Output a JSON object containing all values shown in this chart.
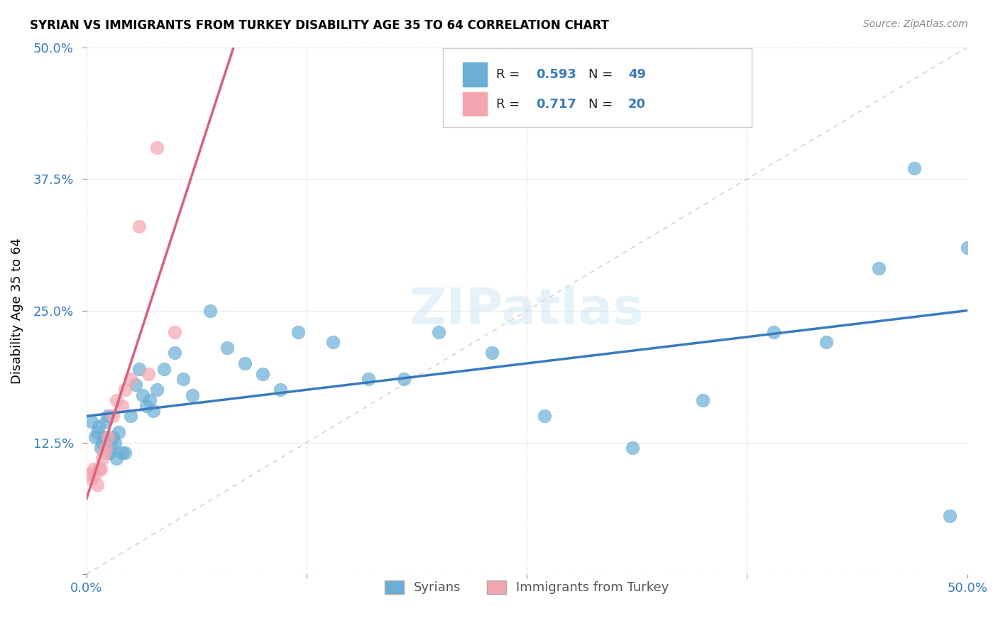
{
  "title": "SYRIAN VS IMMIGRANTS FROM TURKEY DISABILITY AGE 35 TO 64 CORRELATION CHART",
  "source": "Source: ZipAtlas.com",
  "xlabel": "",
  "ylabel": "Disability Age 35 to 64",
  "xlim": [
    0.0,
    0.5
  ],
  "ylim": [
    0.0,
    0.5
  ],
  "xticks": [
    0.0,
    0.125,
    0.25,
    0.375,
    0.5
  ],
  "xticklabels": [
    "0.0%",
    "",
    "",
    "",
    "50.0%"
  ],
  "yticks": [
    0.0,
    0.125,
    0.25,
    0.375,
    0.5
  ],
  "yticklabels": [
    "",
    "12.5%",
    "25.0%",
    "37.5%",
    "50.0%"
  ],
  "legend_label1": "Syrians",
  "legend_label2": "Immigrants from Turkey",
  "R1": 0.593,
  "N1": 49,
  "R2": 0.717,
  "N2": 20,
  "color_blue": "#6aaed6",
  "color_pink": "#f4a6b0",
  "line_color_blue": "#3a7abf",
  "line_color_pink": "#d9607a",
  "line_color_diag": "#c0c0c0",
  "watermark": "ZIPatlas",
  "syrians_x": [
    0.003,
    0.005,
    0.006,
    0.007,
    0.008,
    0.009,
    0.01,
    0.011,
    0.012,
    0.013,
    0.014,
    0.015,
    0.016,
    0.017,
    0.018,
    0.02,
    0.022,
    0.025,
    0.028,
    0.03,
    0.032,
    0.034,
    0.036,
    0.038,
    0.04,
    0.044,
    0.05,
    0.055,
    0.06,
    0.07,
    0.08,
    0.09,
    0.1,
    0.11,
    0.12,
    0.14,
    0.16,
    0.18,
    0.2,
    0.23,
    0.26,
    0.31,
    0.35,
    0.39,
    0.42,
    0.45,
    0.47,
    0.49,
    0.5
  ],
  "syrians_y": [
    0.145,
    0.13,
    0.135,
    0.14,
    0.12,
    0.125,
    0.13,
    0.145,
    0.15,
    0.115,
    0.12,
    0.13,
    0.125,
    0.11,
    0.135,
    0.115,
    0.115,
    0.15,
    0.18,
    0.195,
    0.17,
    0.16,
    0.165,
    0.155,
    0.175,
    0.195,
    0.21,
    0.185,
    0.17,
    0.25,
    0.215,
    0.2,
    0.19,
    0.175,
    0.23,
    0.22,
    0.185,
    0.185,
    0.23,
    0.21,
    0.15,
    0.12,
    0.165,
    0.23,
    0.22,
    0.29,
    0.385,
    0.055,
    0.31
  ],
  "turkey_x": [
    0.002,
    0.003,
    0.004,
    0.005,
    0.006,
    0.007,
    0.008,
    0.009,
    0.01,
    0.011,
    0.012,
    0.015,
    0.017,
    0.02,
    0.022,
    0.025,
    0.03,
    0.035,
    0.04,
    0.05
  ],
  "turkey_y": [
    0.095,
    0.09,
    0.1,
    0.095,
    0.085,
    0.1,
    0.1,
    0.11,
    0.115,
    0.12,
    0.13,
    0.15,
    0.165,
    0.16,
    0.175,
    0.185,
    0.33,
    0.19,
    0.405,
    0.23
  ]
}
